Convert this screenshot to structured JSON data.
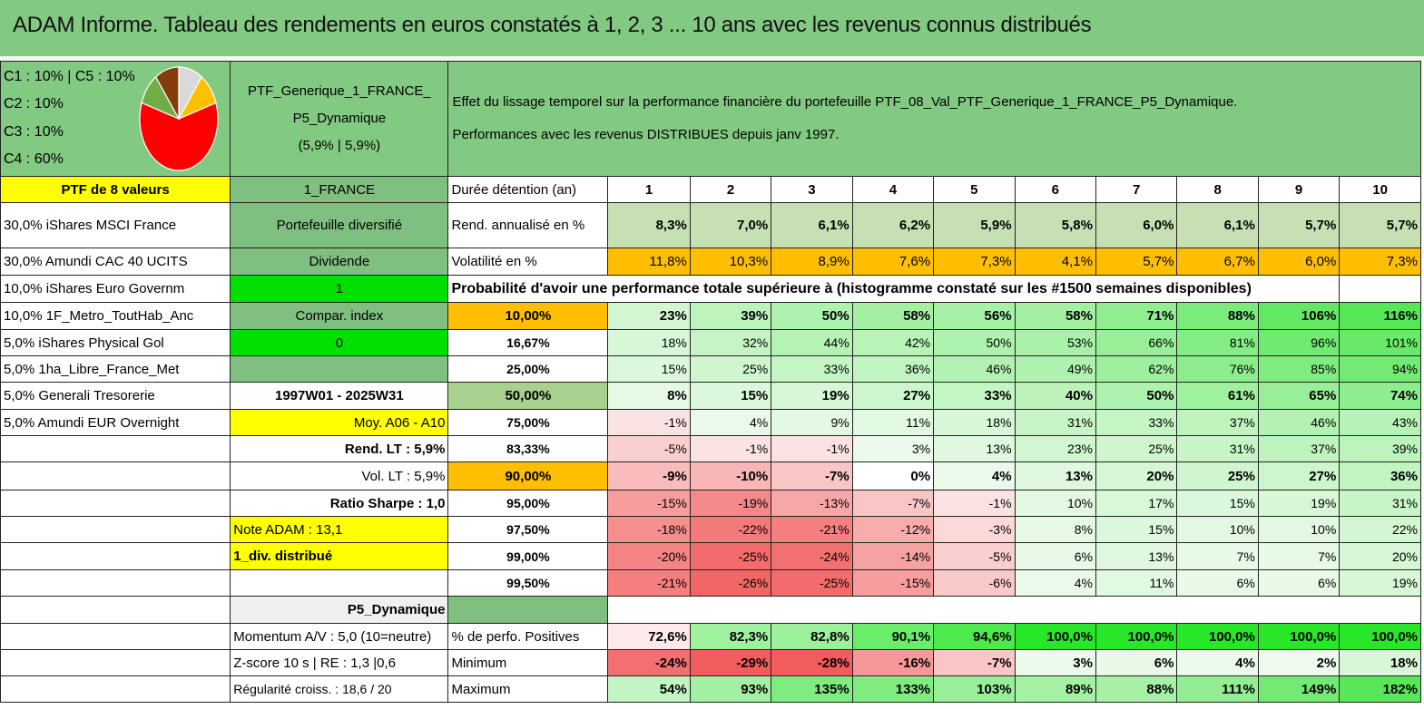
{
  "title": "ADAM Informe. Tableau des rendements en euros constatés à 1, 2, 3 ... 10 ans avec les revenus connus distribués",
  "legend": {
    "lines": [
      "C1 : 10% | C5 : 10%",
      "C2 : 10%",
      "C3 : 10%",
      "C4 : 60%"
    ],
    "pie_slices": [
      {
        "label": "C4",
        "value": 60,
        "color": "#ff0000"
      },
      {
        "label": "C3",
        "value": 10,
        "color": "#70ad47"
      },
      {
        "label": "C2",
        "value": 10,
        "color": "#843c0c"
      },
      {
        "label": "C5",
        "value": 10,
        "color": "#d9d9d9"
      },
      {
        "label": "C1",
        "value": 10,
        "color": "#ffc000"
      }
    ]
  },
  "portfolio": {
    "name_line1": "PTF_Generique_1_FRANCE_",
    "name_line2": "P5_Dynamique",
    "name_line3": "(5,9% | 5,9%)",
    "description_line1": "Effet du lissage temporel sur la performance financière du portefeuille PTF_08_Val_PTF_Generique_1_FRANCE_P5_Dynamique.",
    "description_line2": "Performances avec les revenus DISTRIBUES depuis janv 1997."
  },
  "left_col": {
    "header": "PTF de 8 valeurs",
    "holdings": [
      "30,0% iShares MSCI France",
      "30,0% Amundi CAC 40 UCITS",
      "10,0% iShares Euro Governm",
      "10,0% 1F_Metro_ToutHab_Anc",
      "5,0% iShares Physical Gol",
      "5,0% 1ha_Libre_France_Met",
      "5,0% Generali Tresorerie",
      "5,0% Amundi EUR Overnight"
    ]
  },
  "mid_col": {
    "region": "1_FRANCE",
    "type": "Portefeuille diversifié",
    "dividende_label": "Dividende",
    "dividende_value": "1",
    "compar_label": "Compar. index",
    "compar_value": "0",
    "period": "1997W01 - 2025W31",
    "moy": "Moy. A06 - A10",
    "rend_lt": "Rend. LT : 5,9%",
    "vol_lt": "Vol. LT : 5,9%",
    "sharpe": "Ratio Sharpe : 1,0",
    "note": "Note ADAM : 13,1",
    "div": "1_div. distribué",
    "profile": "P5_Dynamique",
    "momentum": "Momentum A/V : 5,0 (10=neutre)",
    "zscore": "Z-score 10 s | RE : 1,3 |0,6",
    "regularite": "Régularité croiss. : 18,6 / 20"
  },
  "stats": {
    "duree_label": "Durée détention (an)",
    "years": [
      "1",
      "2",
      "3",
      "4",
      "5",
      "6",
      "7",
      "8",
      "9",
      "10"
    ],
    "rend_label": "Rend. annualisé en %",
    "rend": [
      "8,3%",
      "7,0%",
      "6,1%",
      "6,2%",
      "5,9%",
      "5,8%",
      "6,0%",
      "6,1%",
      "5,7%",
      "5,7%"
    ],
    "vol_label": "Volatilité en %",
    "vol": [
      "11,8%",
      "10,3%",
      "8,9%",
      "7,6%",
      "7,3%",
      "4,1%",
      "5,7%",
      "6,7%",
      "6,0%",
      "7,3%"
    ],
    "proba_label": "Probabilité d'avoir une performance totale supérieure à (histogramme constaté sur les #1500 semaines disponibles)",
    "quantiles": [
      {
        "q": "10,00%",
        "v": [
          "23%",
          "39%",
          "50%",
          "58%",
          "56%",
          "58%",
          "71%",
          "88%",
          "106%",
          "116%"
        ],
        "n": [
          23,
          39,
          50,
          58,
          56,
          58,
          71,
          88,
          106,
          116
        ],
        "bold": true
      },
      {
        "q": "16,67%",
        "v": [
          "18%",
          "32%",
          "44%",
          "42%",
          "50%",
          "53%",
          "66%",
          "81%",
          "96%",
          "101%"
        ],
        "n": [
          18,
          32,
          44,
          42,
          50,
          53,
          66,
          81,
          96,
          101
        ]
      },
      {
        "q": "25,00%",
        "v": [
          "15%",
          "25%",
          "33%",
          "36%",
          "46%",
          "49%",
          "62%",
          "76%",
          "85%",
          "94%"
        ],
        "n": [
          15,
          25,
          33,
          36,
          46,
          49,
          62,
          76,
          85,
          94
        ]
      },
      {
        "q": "50,00%",
        "v": [
          "8%",
          "15%",
          "19%",
          "27%",
          "33%",
          "40%",
          "50%",
          "61%",
          "65%",
          "74%"
        ],
        "n": [
          8,
          15,
          19,
          27,
          33,
          40,
          50,
          61,
          65,
          74
        ],
        "bold": true,
        "big": true
      },
      {
        "q": "75,00%",
        "v": [
          "-1%",
          "4%",
          "9%",
          "11%",
          "18%",
          "31%",
          "33%",
          "37%",
          "46%",
          "43%"
        ],
        "n": [
          -1,
          4,
          9,
          11,
          18,
          31,
          33,
          37,
          46,
          43
        ]
      },
      {
        "q": "83,33%",
        "v": [
          "-5%",
          "-1%",
          "-1%",
          "3%",
          "13%",
          "23%",
          "25%",
          "31%",
          "37%",
          "39%"
        ],
        "n": [
          -5,
          -1,
          -1,
          3,
          13,
          23,
          25,
          31,
          37,
          39
        ]
      },
      {
        "q": "90,00%",
        "v": [
          "-9%",
          "-10%",
          "-7%",
          "0%",
          "4%",
          "13%",
          "20%",
          "25%",
          "27%",
          "36%"
        ],
        "n": [
          -9,
          -10,
          -7,
          0,
          4,
          13,
          20,
          25,
          27,
          36
        ],
        "bold": true,
        "big": true
      },
      {
        "q": "95,00%",
        "v": [
          "-15%",
          "-19%",
          "-13%",
          "-7%",
          "-1%",
          "10%",
          "17%",
          "15%",
          "19%",
          "31%"
        ],
        "n": [
          -15,
          -19,
          -13,
          -7,
          -1,
          10,
          17,
          15,
          19,
          31
        ]
      },
      {
        "q": "97,50%",
        "v": [
          "-18%",
          "-22%",
          "-21%",
          "-12%",
          "-3%",
          "8%",
          "15%",
          "10%",
          "10%",
          "22%"
        ],
        "n": [
          -18,
          -22,
          -21,
          -12,
          -3,
          8,
          15,
          10,
          10,
          22
        ]
      },
      {
        "q": "99,00%",
        "v": [
          "-20%",
          "-25%",
          "-24%",
          "-14%",
          "-5%",
          "6%",
          "13%",
          "7%",
          "7%",
          "20%"
        ],
        "n": [
          -20,
          -25,
          -24,
          -14,
          -5,
          6,
          13,
          7,
          7,
          20
        ]
      },
      {
        "q": "99,50%",
        "v": [
          "-21%",
          "-26%",
          "-25%",
          "-15%",
          "-6%",
          "4%",
          "11%",
          "6%",
          "6%",
          "19%"
        ],
        "n": [
          -21,
          -26,
          -25,
          -15,
          -6,
          4,
          11,
          6,
          6,
          19
        ]
      }
    ],
    "pos_label": "% de perfo. Positives",
    "pos": [
      "72,6%",
      "82,3%",
      "82,8%",
      "90,1%",
      "94,6%",
      "100,0%",
      "100,0%",
      "100,0%",
      "100,0%",
      "100,0%"
    ],
    "pos_n": [
      72.6,
      82.3,
      82.8,
      90.1,
      94.6,
      100,
      100,
      100,
      100,
      100
    ],
    "min_label": "Minimum",
    "min": [
      "-24%",
      "-29%",
      "-28%",
      "-16%",
      "-7%",
      "3%",
      "6%",
      "4%",
      "2%",
      "18%"
    ],
    "min_n": [
      -24,
      -29,
      -28,
      -16,
      -7,
      3,
      6,
      4,
      2,
      18
    ],
    "max_label": "Maximum",
    "max": [
      "54%",
      "93%",
      "135%",
      "133%",
      "103%",
      "89%",
      "88%",
      "111%",
      "149%",
      "182%"
    ],
    "max_n": [
      54,
      93,
      135,
      133,
      103,
      89,
      88,
      111,
      149,
      182
    ]
  },
  "colors": {
    "header_green": "#82c982",
    "yellow": "#ffff00",
    "bright_green": "#00e000",
    "orange": "#ffbf00",
    "red_text": "#e00000"
  }
}
